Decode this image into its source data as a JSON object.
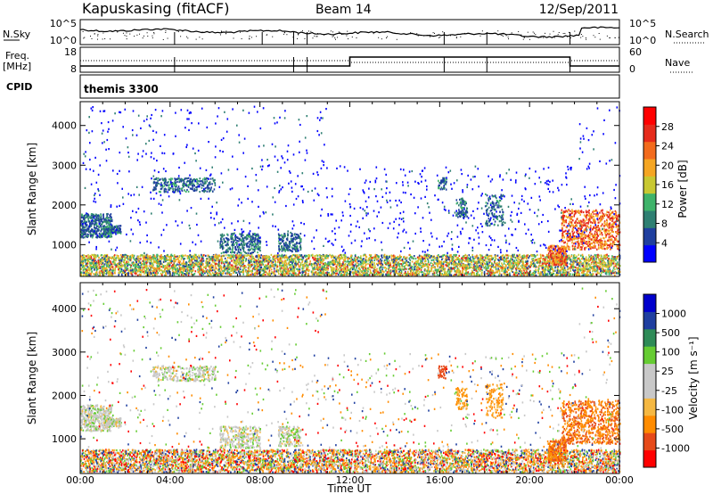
{
  "header": {
    "station": "Kapuskasing (fitACF)",
    "beam": "Beam 14",
    "date": "12/Sep/2011"
  },
  "panels": {
    "nsky_label": "N.Sky",
    "nsky_ticks": [
      "10^5",
      "10^0"
    ],
    "nsearch_label": "N.Search",
    "freq_label_1": "Freq.",
    "freq_label_2": "[MHz]",
    "freq_ticks": [
      "18",
      "8"
    ],
    "nave_label": "Nave",
    "nave_ticks": [
      "60",
      "0"
    ],
    "cpid_label": "CPID",
    "cpid_value": "themis 3300"
  },
  "colors": {
    "power_scale": [
      "#0000ff",
      "#1f3f9f",
      "#2e7f72",
      "#3fb36a",
      "#c8c832",
      "#f5a623",
      "#f26b1d",
      "#e62b1b",
      "#ff0000"
    ],
    "velocity_scale": [
      "#ff0000",
      "#e64a19",
      "#ff8c00",
      "#f5b842",
      "#c8c8c8",
      "#c8c8c8",
      "#66cc33",
      "#2e8b57",
      "#1f3fa0",
      "#0000cc"
    ]
  },
  "chart_data": [
    {
      "type": "heatmap",
      "name": "power",
      "ylabel": "Slant Range [km]",
      "yticks": [
        1000,
        2000,
        3000,
        4000
      ],
      "ylim": [
        200,
        4600
      ],
      "xlim": [
        0,
        24
      ],
      "colorbar_label": "Power [dB]",
      "colorbar_ticks": [
        "4",
        "8",
        "12",
        "16",
        "20",
        "24",
        "28"
      ]
    },
    {
      "type": "heatmap",
      "name": "velocity",
      "ylabel": "Slant Range [km]",
      "yticks": [
        1000,
        2000,
        3000,
        4000
      ],
      "ylim": [
        200,
        4600
      ],
      "xlim": [
        0,
        24
      ],
      "colorbar_label": "Velocity [m s⁻¹]",
      "colorbar_ticks": [
        "-1000",
        "-500",
        "-100",
        "-25",
        "25",
        "100",
        "500",
        "1000"
      ]
    }
  ],
  "xaxis": {
    "ticks": [
      "00:00",
      "04:00",
      "08:00",
      "12:00",
      "16:00",
      "20:00",
      "00:00"
    ],
    "label": "Time UT"
  }
}
